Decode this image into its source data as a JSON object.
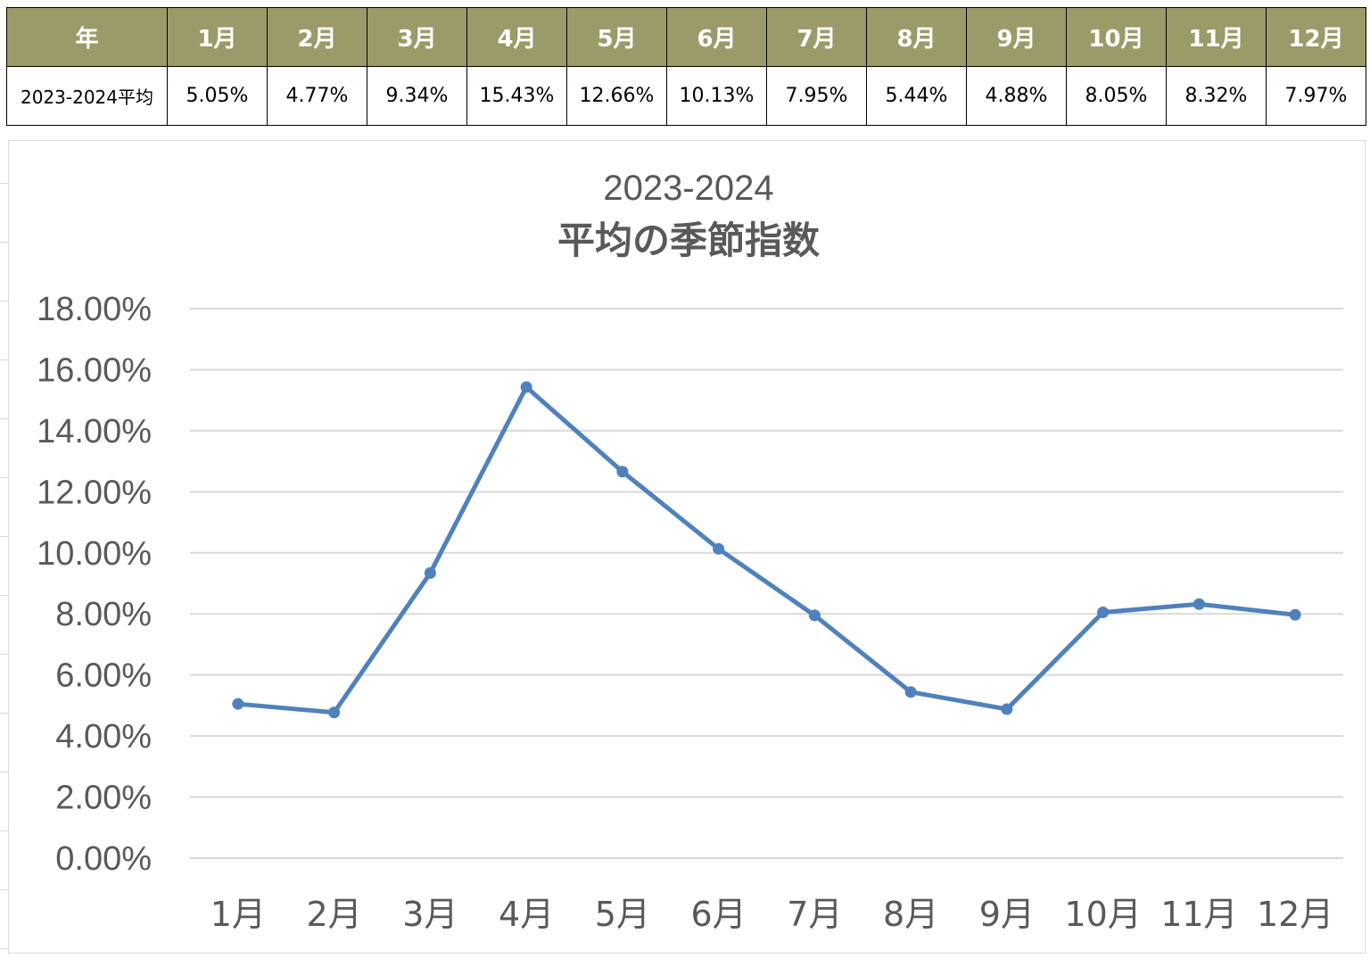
{
  "table": {
    "header_label": "年",
    "months": [
      "1月",
      "2月",
      "3月",
      "4月",
      "5月",
      "6月",
      "7月",
      "8月",
      "9月",
      "10月",
      "11月",
      "12月"
    ],
    "row_label": "2023-2024平均",
    "values": [
      "5.05%",
      "4.77%",
      "9.34%",
      "15.43%",
      "12.66%",
      "10.13%",
      "7.95%",
      "5.44%",
      "4.88%",
      "8.05%",
      "8.32%",
      "7.97%"
    ]
  },
  "colors": {
    "header_bg": "#9b9b6a",
    "line": "#4f81bd",
    "gridline": "#d9d9d9",
    "text": "#595959"
  },
  "chart_data": {
    "type": "line",
    "title_line1": "2023-2024",
    "title_line2": "平均の季節指数",
    "categories": [
      "1月",
      "2月",
      "3月",
      "4月",
      "5月",
      "6月",
      "7月",
      "8月",
      "9月",
      "10月",
      "11月",
      "12月"
    ],
    "series": [
      {
        "values": [
          5.05,
          4.77,
          9.34,
          15.43,
          12.66,
          10.13,
          7.95,
          5.44,
          4.88,
          8.05,
          8.32,
          7.97
        ]
      }
    ],
    "y_unit": "%",
    "ylim": [
      0,
      18
    ],
    "ystep": 2,
    "ytick_labels": [
      "0.00%",
      "2.00%",
      "4.00%",
      "6.00%",
      "8.00%",
      "10.00%",
      "12.00%",
      "14.00%",
      "16.00%",
      "18.00%"
    ],
    "grid": true,
    "legend": "none",
    "markers": true
  }
}
